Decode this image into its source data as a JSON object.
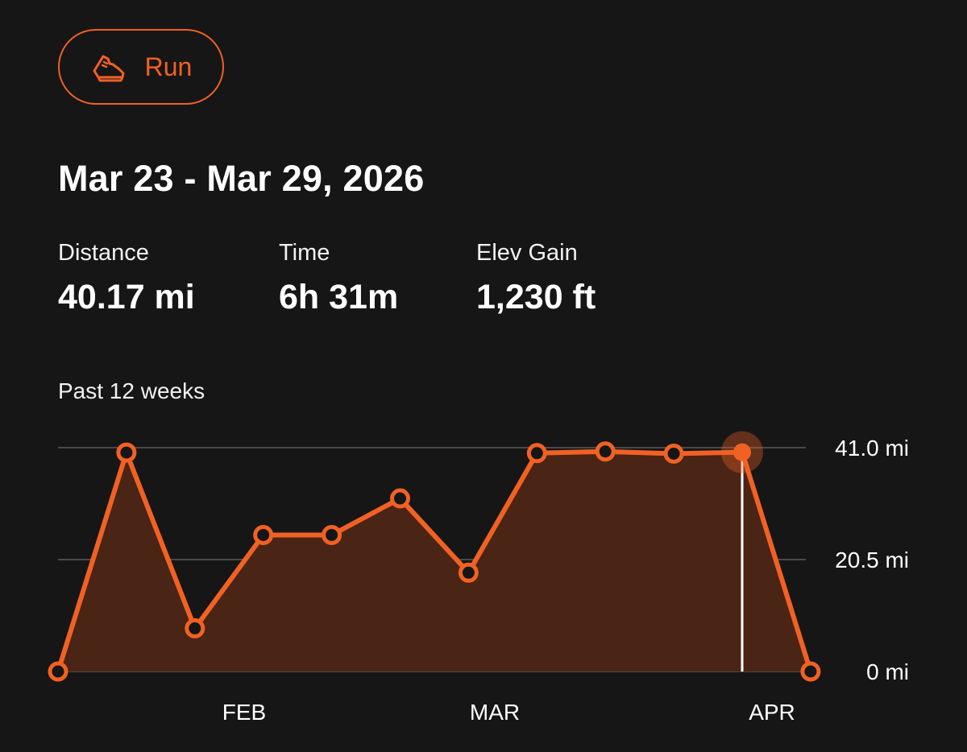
{
  "activity": {
    "label": "Run",
    "icon": "running-shoe-icon"
  },
  "period": {
    "title": "Mar 23 - Mar 29, 2026"
  },
  "stats": [
    {
      "label": "Distance",
      "value": "40.17 mi"
    },
    {
      "label": "Time",
      "value": "6h 31m"
    },
    {
      "label": "Elev Gain",
      "value": "1,230 ft"
    }
  ],
  "chart_caption": "Past 12 weeks",
  "colors": {
    "accent": "#f16124",
    "fill": "#4a2415",
    "background": "#161616",
    "grid": "#4a4a4a",
    "cursor": "#ffffff"
  },
  "chart_data": {
    "type": "area",
    "title": "",
    "xlabel": "",
    "ylabel": "",
    "x_ticks": [
      "FEB",
      "MAR",
      "APR"
    ],
    "y_ticks": [
      "0 mi",
      "20.5 mi",
      "41.0 mi"
    ],
    "ylim": [
      0,
      41.0
    ],
    "y_unit": "mi",
    "grid": true,
    "series": [
      {
        "values": [
          0,
          40.1,
          7.9,
          25.0,
          25.0,
          31.7,
          18.1,
          40.0,
          40.3,
          39.9,
          40.17,
          0
        ]
      }
    ],
    "selected_index": 10
  }
}
